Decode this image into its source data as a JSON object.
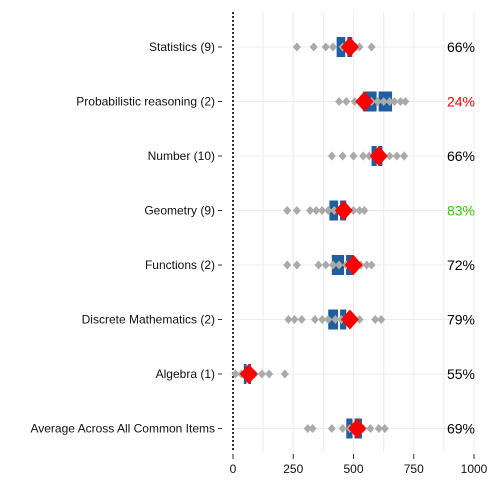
{
  "chart_data": {
    "type": "scatter",
    "title": "",
    "xlabel": "",
    "ylabel": "",
    "xlim": [
      0,
      1000
    ],
    "xticks": [
      0,
      250,
      500,
      750,
      1000
    ],
    "grid": true,
    "reference_line": {
      "x": 0,
      "style": "dotted"
    },
    "colors": {
      "points": "#aaaaaa",
      "mean_marker": "#ff0000",
      "box": "#1f5f9e",
      "grid": "#ececec",
      "pct_default": "#000000",
      "pct_low": "#ff0000",
      "pct_high": "#33cc00"
    },
    "rows": [
      {
        "label": "Statistics (9)",
        "points": [
          265,
          335,
          385,
          415,
          455,
          480,
          510,
          525,
          575
        ],
        "box": {
          "q1": 430,
          "median": 470,
          "q3": 495
        },
        "mean": 485,
        "percent": "66%",
        "percent_color": "#000000"
      },
      {
        "label": "Probabilistic reasoning (2)",
        "points": [
          440,
          470,
          505,
          530,
          555,
          575,
          600,
          625,
          650,
          670,
          695,
          715
        ],
        "box": {
          "q1": 540,
          "median": 600,
          "q3": 660
        },
        "mean": 545,
        "percent": "24%",
        "percent_color": "#ff0000"
      },
      {
        "label": "Number (10)",
        "points": [
          410,
          455,
          500,
          540,
          565,
          590,
          620,
          650,
          680,
          710
        ],
        "box": {
          "q1": 575,
          "median": 600,
          "q3": 620
        },
        "mean": 605,
        "percent": "66%",
        "percent_color": "#000000"
      },
      {
        "label": "Geometry (9)",
        "points": [
          225,
          265,
          320,
          345,
          370,
          395,
          420,
          450,
          500,
          525,
          545
        ],
        "box": {
          "q1": 400,
          "median": 440,
          "q3": 470
        },
        "mean": 460,
        "percent": "83%",
        "percent_color": "#33cc00"
      },
      {
        "label": "Functions (2)",
        "points": [
          225,
          265,
          355,
          385,
          415,
          440,
          470,
          500,
          530,
          555,
          575
        ],
        "box": {
          "q1": 410,
          "median": 465,
          "q3": 500
        },
        "mean": 500,
        "percent": "72%",
        "percent_color": "#000000"
      },
      {
        "label": "Discrete Mathematics (2)",
        "points": [
          230,
          255,
          285,
          340,
          370,
          395,
          425,
          450,
          480,
          525,
          590,
          615
        ],
        "box": {
          "q1": 395,
          "median": 440,
          "q3": 470
        },
        "mean": 485,
        "percent": "79%",
        "percent_color": "#000000"
      },
      {
        "label": "Algebra (1)",
        "points": [
          10,
          35,
          60,
          90,
          120,
          150,
          215
        ],
        "box": {
          "q1": 45,
          "median": 60,
          "q3": 75
        },
        "mean": 65,
        "percent": "55%",
        "percent_color": "#000000"
      },
      {
        "label": "Average Across All Common Items",
        "points": [
          310,
          330,
          410,
          455,
          485,
          510,
          540,
          570,
          605,
          630
        ],
        "box": {
          "q1": 470,
          "median": 500,
          "q3": 535
        },
        "mean": 515,
        "percent": "69%",
        "percent_color": "#000000"
      }
    ]
  }
}
